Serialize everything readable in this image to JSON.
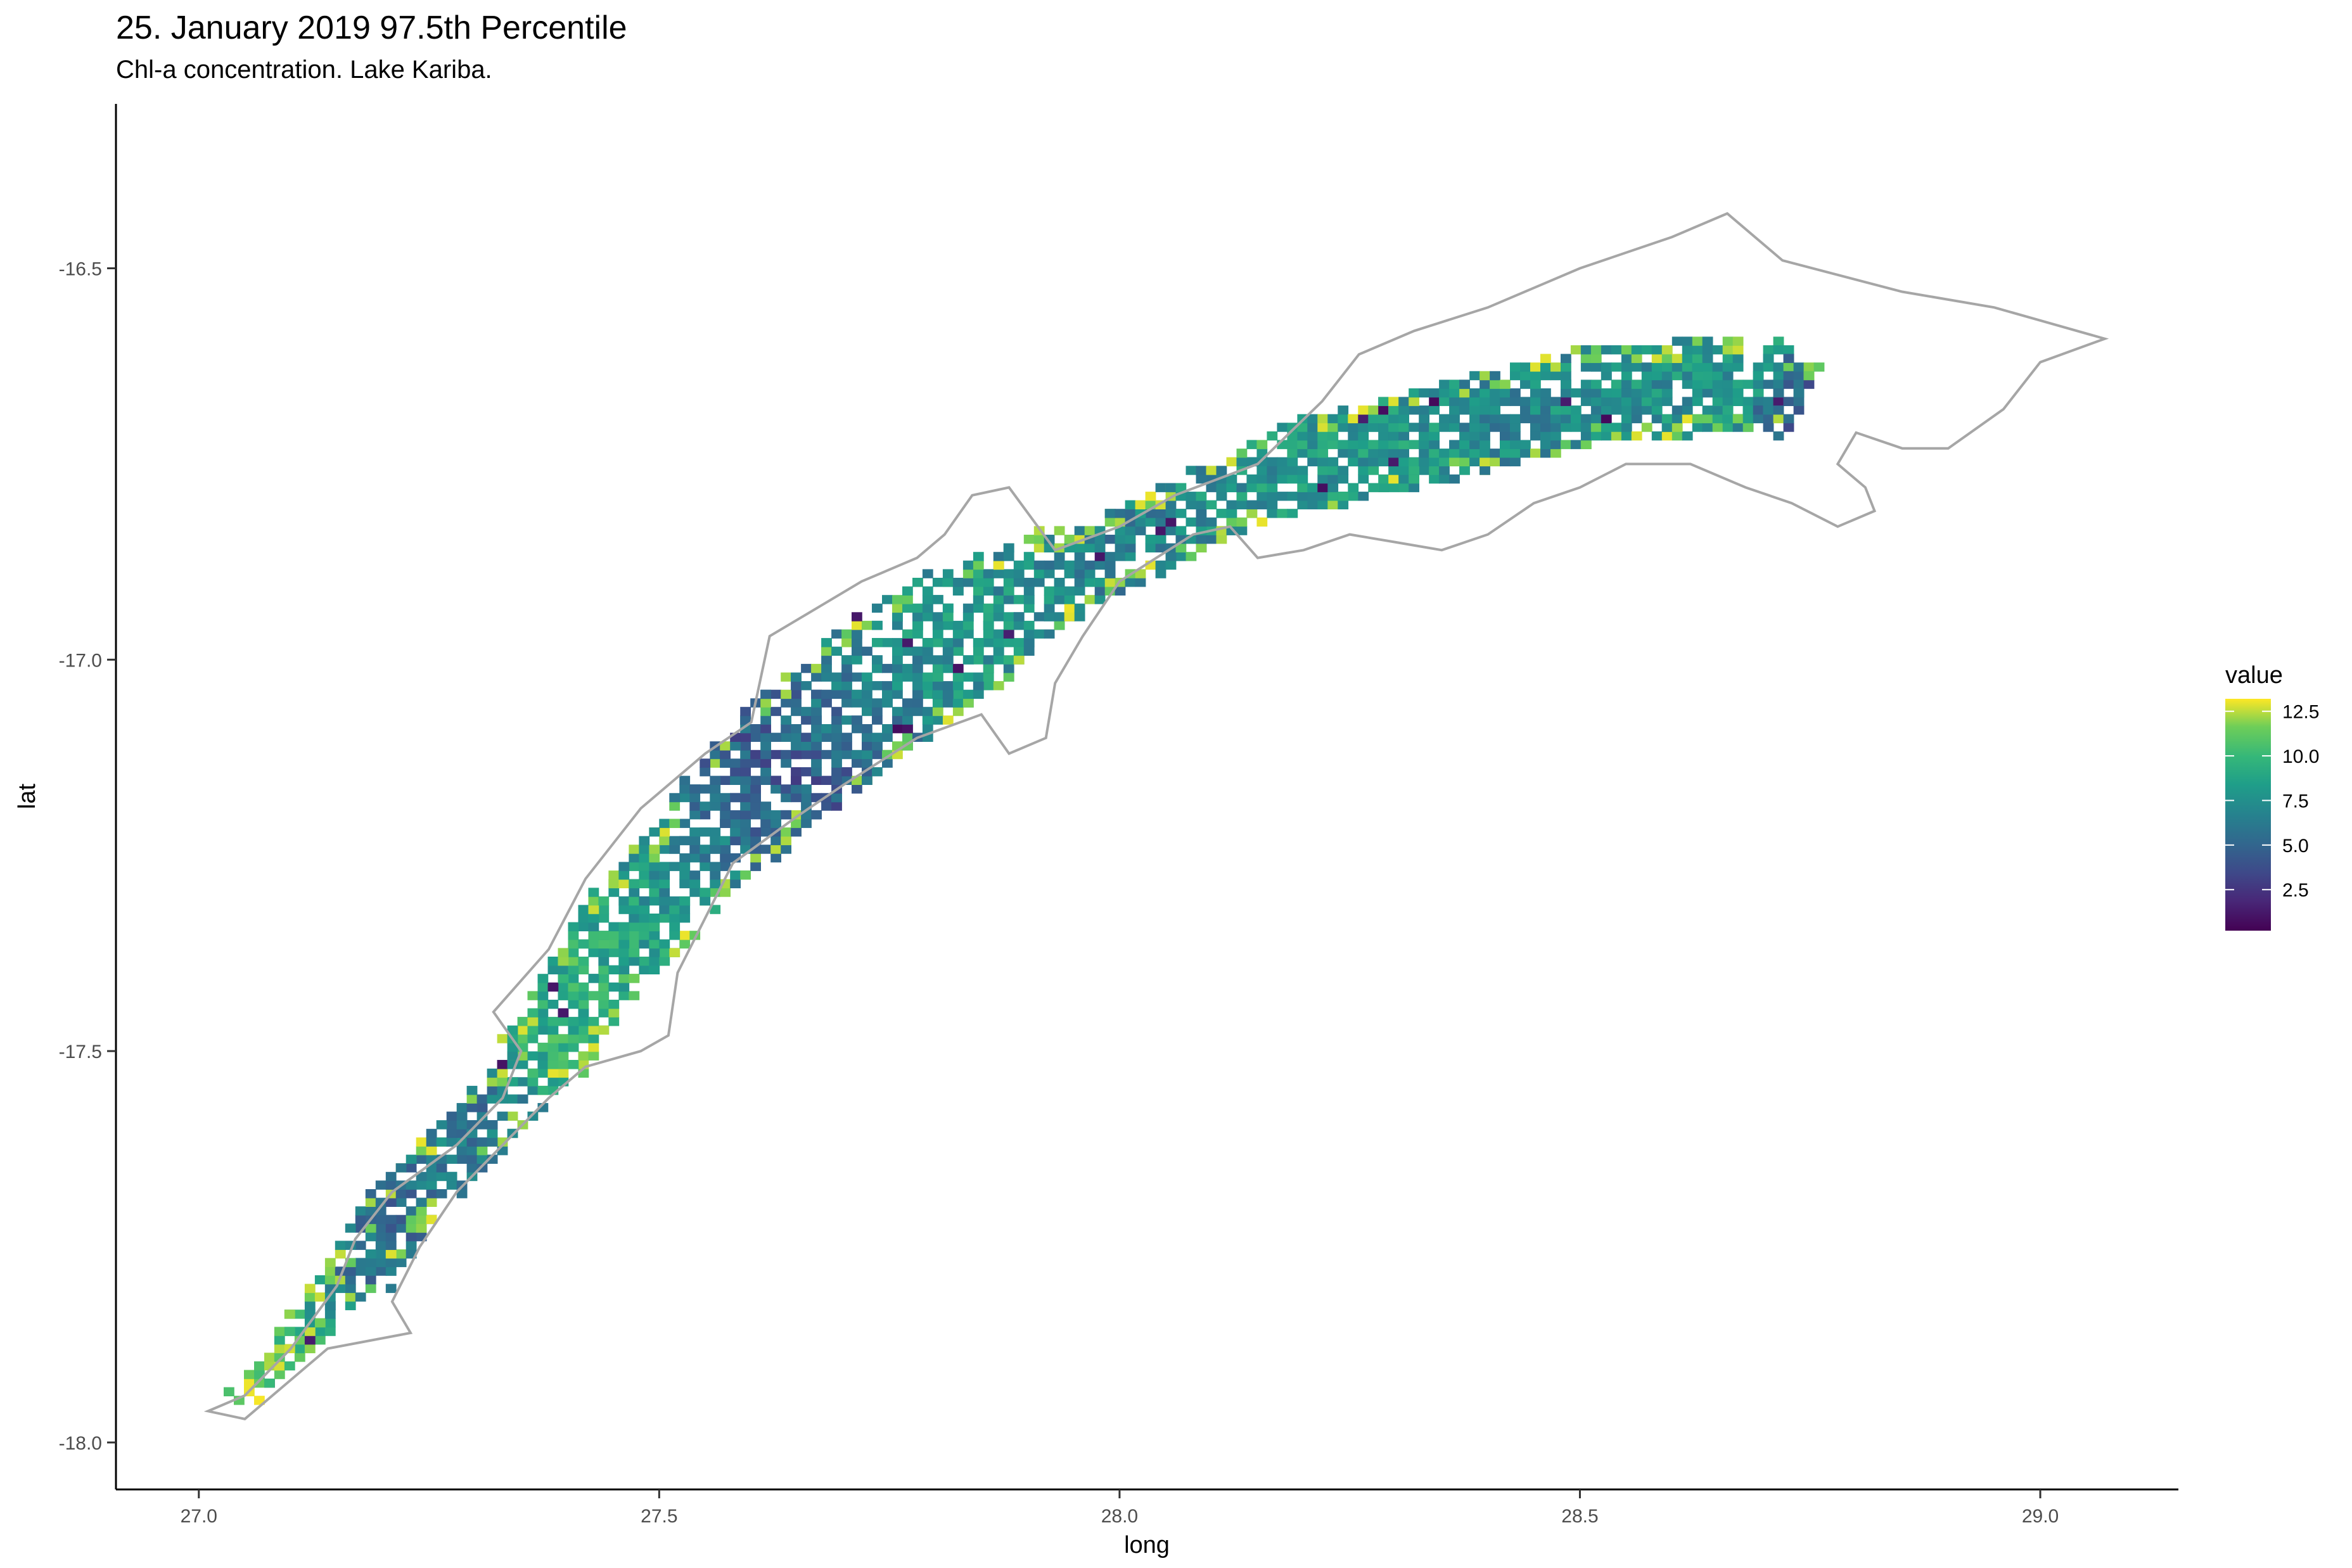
{
  "chart_data": {
    "type": "heatmap",
    "title": "25. January 2019 97.5th Percentile",
    "subtitle": "Chl-a concentration. Lake Kariba.",
    "xlabel": "long",
    "ylabel": "lat",
    "xlim": [
      26.91,
      29.15
    ],
    "ylim": [
      -18.06,
      -16.29
    ],
    "x_ticks": [
      "27.0",
      "27.5",
      "28.0",
      "28.5",
      "29.0"
    ],
    "y_ticks": [
      "-16.5",
      "-17.0",
      "-17.5",
      "-18.0"
    ],
    "x_tick_values": [
      27.0,
      27.5,
      28.0,
      28.5,
      29.0
    ],
    "y_tick_values": [
      -16.5,
      -17.0,
      -17.5,
      -18.0
    ],
    "grid": false,
    "legend": {
      "title": "value",
      "position": "right",
      "labels": [
        "12.5",
        "10.0",
        "7.5",
        "5.0",
        "2.5"
      ],
      "label_values": [
        12.5,
        10.0,
        7.5,
        5.0,
        2.5
      ],
      "range": [
        0.2,
        13.2
      ],
      "colormap": "viridis"
    },
    "outline_color": "#a6a6a6",
    "colors": [
      "#440154",
      "#3b528b",
      "#21908c",
      "#5ec962",
      "#fde725"
    ],
    "lake_outline_path": [
      [
        27.01,
        -17.96
      ],
      [
        27.05,
        -17.94
      ],
      [
        27.1,
        -17.88
      ],
      [
        27.15,
        -17.8
      ],
      [
        27.17,
        -17.74
      ],
      [
        27.21,
        -17.68
      ],
      [
        27.28,
        -17.62
      ],
      [
        27.33,
        -17.56
      ],
      [
        27.35,
        -17.5
      ],
      [
        27.32,
        -17.45
      ],
      [
        27.38,
        -17.37
      ],
      [
        27.42,
        -17.28
      ],
      [
        27.48,
        -17.19
      ],
      [
        27.55,
        -17.12
      ],
      [
        27.6,
        -17.08
      ],
      [
        27.62,
        -16.97
      ],
      [
        27.72,
        -16.9
      ],
      [
        27.78,
        -16.87
      ],
      [
        27.81,
        -16.84
      ],
      [
        27.84,
        -16.79
      ],
      [
        27.88,
        -16.78
      ],
      [
        27.93,
        -16.86
      ],
      [
        28.0,
        -16.83
      ],
      [
        28.06,
        -16.79
      ],
      [
        28.15,
        -16.75
      ],
      [
        28.22,
        -16.67
      ],
      [
        28.26,
        -16.61
      ],
      [
        28.32,
        -16.58
      ],
      [
        28.4,
        -16.55
      ],
      [
        28.5,
        -16.5
      ],
      [
        28.6,
        -16.46
      ],
      [
        28.66,
        -16.43
      ],
      [
        28.72,
        -16.49
      ],
      [
        28.85,
        -16.53
      ],
      [
        28.95,
        -16.55
      ],
      [
        29.07,
        -16.59
      ],
      [
        29.0,
        -16.62
      ],
      [
        28.96,
        -16.68
      ],
      [
        28.9,
        -16.73
      ],
      [
        28.85,
        -16.73
      ],
      [
        28.8,
        -16.71
      ],
      [
        28.78,
        -16.75
      ],
      [
        28.81,
        -16.78
      ],
      [
        28.82,
        -16.81
      ],
      [
        28.78,
        -16.83
      ],
      [
        28.73,
        -16.8
      ],
      [
        28.68,
        -16.78
      ],
      [
        28.62,
        -16.75
      ],
      [
        28.55,
        -16.75
      ],
      [
        28.5,
        -16.78
      ],
      [
        28.45,
        -16.8
      ],
      [
        28.4,
        -16.84
      ],
      [
        28.35,
        -16.86
      ],
      [
        28.3,
        -16.85
      ],
      [
        28.25,
        -16.84
      ],
      [
        28.2,
        -16.86
      ],
      [
        28.15,
        -16.87
      ],
      [
        28.12,
        -16.83
      ],
      [
        28.08,
        -16.84
      ],
      [
        28.04,
        -16.87
      ],
      [
        28.0,
        -16.9
      ],
      [
        27.96,
        -16.97
      ],
      [
        27.93,
        -17.03
      ],
      [
        27.92,
        -17.1
      ],
      [
        27.88,
        -17.12
      ],
      [
        27.85,
        -17.07
      ],
      [
        27.78,
        -17.1
      ],
      [
        27.7,
        -17.16
      ],
      [
        27.65,
        -17.2
      ],
      [
        27.58,
        -17.26
      ],
      [
        27.55,
        -17.33
      ],
      [
        27.52,
        -17.4
      ],
      [
        27.51,
        -17.48
      ],
      [
        27.48,
        -17.5
      ],
      [
        27.42,
        -17.52
      ],
      [
        27.38,
        -17.56
      ],
      [
        27.33,
        -17.62
      ],
      [
        27.28,
        -17.68
      ],
      [
        27.24,
        -17.75
      ],
      [
        27.21,
        -17.82
      ],
      [
        27.23,
        -17.86
      ],
      [
        27.14,
        -17.88
      ],
      [
        27.1,
        -17.92
      ],
      [
        27.05,
        -17.97
      ],
      [
        27.01,
        -17.96
      ]
    ],
    "lake_axis_points": [
      [
        27.04,
        -17.95
      ],
      [
        27.09,
        -17.89
      ],
      [
        27.12,
        -17.84
      ],
      [
        27.17,
        -17.79
      ],
      [
        27.21,
        -17.71
      ],
      [
        27.27,
        -17.64
      ],
      [
        27.32,
        -17.58
      ],
      [
        27.36,
        -17.53
      ],
      [
        27.39,
        -17.47
      ],
      [
        27.43,
        -17.4
      ],
      [
        27.47,
        -17.34
      ],
      [
        27.52,
        -17.28
      ],
      [
        27.57,
        -17.21
      ],
      [
        27.63,
        -17.14
      ],
      [
        27.7,
        -17.07
      ],
      [
        27.78,
        -17.0
      ],
      [
        27.85,
        -16.95
      ],
      [
        27.92,
        -16.9
      ],
      [
        28.01,
        -16.86
      ],
      [
        28.1,
        -16.8
      ],
      [
        28.19,
        -16.76
      ],
      [
        28.3,
        -16.73
      ],
      [
        28.4,
        -16.7
      ],
      [
        28.5,
        -16.67
      ],
      [
        28.6,
        -16.66
      ],
      [
        28.68,
        -16.65
      ],
      [
        28.74,
        -16.68
      ]
    ],
    "lake_half_width": [
      0.01,
      0.014,
      0.022,
      0.028,
      0.032,
      0.03,
      0.033,
      0.036,
      0.045,
      0.048,
      0.052,
      0.055,
      0.062,
      0.072,
      0.08,
      0.082,
      0.068,
      0.052,
      0.04,
      0.045,
      0.05,
      0.055,
      0.058,
      0.06,
      0.058,
      0.055,
      0.04
    ],
    "lake_mean_value": [
      11.5,
      11.0,
      8.5,
      6.0,
      5.5,
      6.5,
      6.0,
      9.0,
      9.5,
      9.0,
      8.5,
      7.5,
      5.5,
      4.5,
      6.0,
      7.5,
      8.0,
      7.0,
      6.5,
      7.5,
      8.0,
      8.0,
      7.0,
      7.5,
      7.5,
      8.0,
      4.0
    ]
  }
}
